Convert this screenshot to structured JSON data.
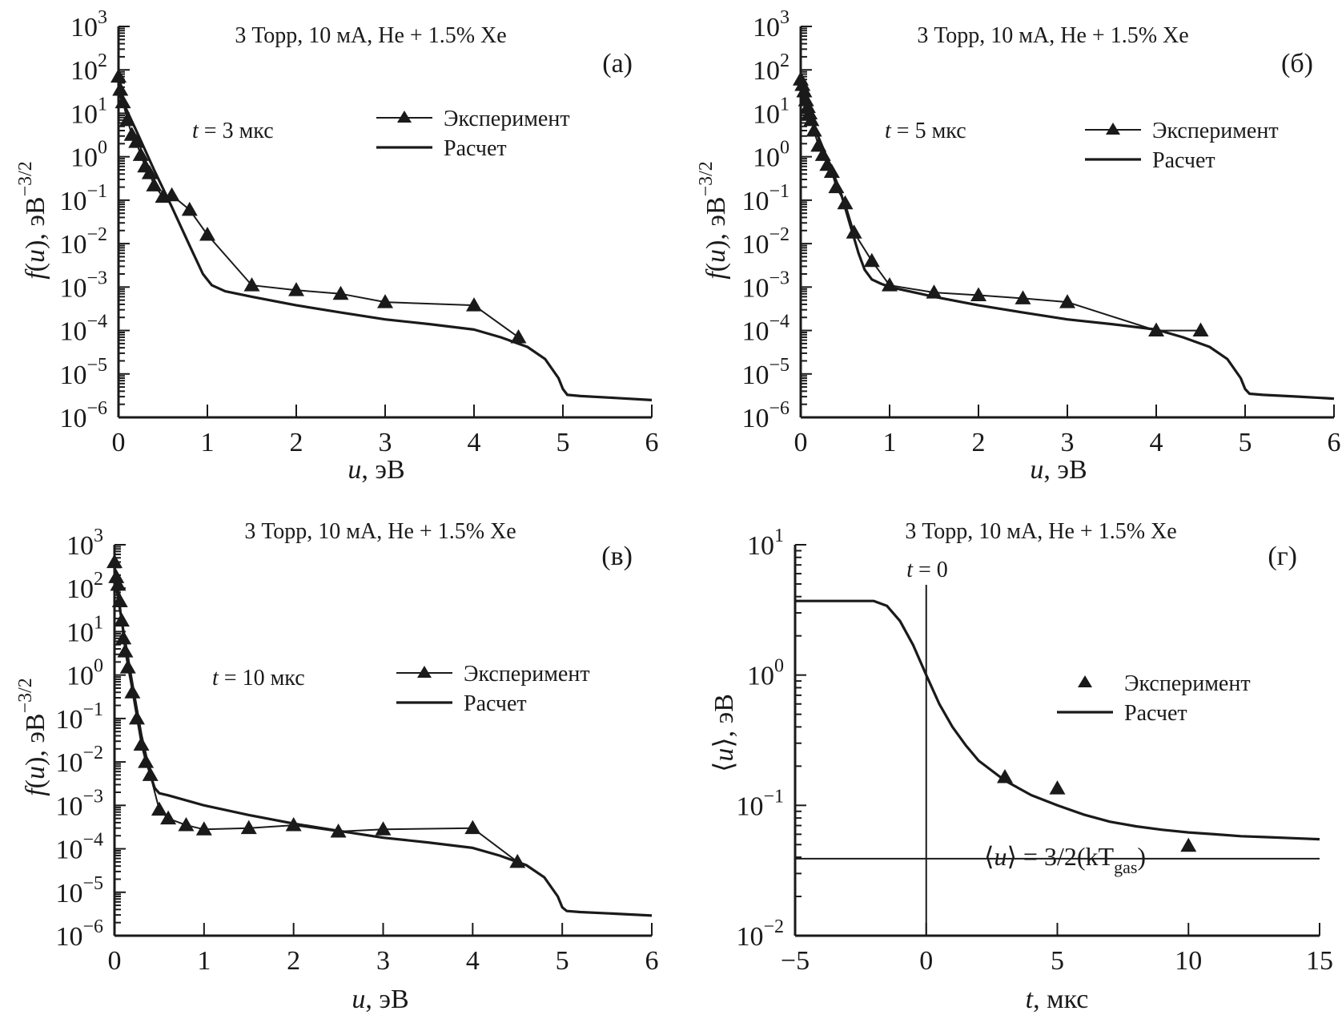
{
  "figure": {
    "panels_count": 4
  },
  "chart_data": [
    {
      "id": "a",
      "type": "line",
      "panel_label": "(а)",
      "title": "3 Торр, 10 мА, He + 1.5% Xe",
      "annotation": "t = 3 мкс",
      "annotation_var": "t",
      "annotation_rest": " = 3 мкс",
      "xlabel": "u, эВ",
      "xlabel_var": "u",
      "xlabel_rest": ", эВ",
      "ylabel": "f(u), эВ^-3/2",
      "ylabel_main": "f(u), эВ",
      "ylabel_sup": "−3/2",
      "yscale": "log",
      "xlim": [
        0,
        6
      ],
      "ylim": [
        1e-06,
        1000.0
      ],
      "xticks": [
        "0",
        "1",
        "2",
        "3",
        "4",
        "5",
        "6"
      ],
      "yticks": [
        {
          "base": "10",
          "exp": "3"
        },
        {
          "base": "10",
          "exp": "2"
        },
        {
          "base": "10",
          "exp": "1"
        },
        {
          "base": "10",
          "exp": "0"
        },
        {
          "base": "10",
          "exp": "−1"
        },
        {
          "base": "10",
          "exp": "−2"
        },
        {
          "base": "10",
          "exp": "−3"
        },
        {
          "base": "10",
          "exp": "−4"
        },
        {
          "base": "10",
          "exp": "−5"
        },
        {
          "base": "10",
          "exp": "−6"
        }
      ],
      "legend": {
        "position": "top-right",
        "entries": [
          "Эксперимент",
          "Расчет"
        ],
        "experiment_has_line": true
      },
      "series": [
        {
          "name": "Эксперимент",
          "style": "line+triangle",
          "x": [
            0.0,
            0.02,
            0.05,
            0.1,
            0.15,
            0.2,
            0.25,
            0.3,
            0.35,
            0.4,
            0.5,
            0.6,
            0.8,
            1.0,
            1.5,
            2.0,
            2.5,
            3.0,
            4.0,
            4.5
          ],
          "y": [
            70,
            35,
            18,
            7,
            3.2,
            2.2,
            1.1,
            0.6,
            0.42,
            0.22,
            0.12,
            0.13,
            0.06,
            0.016,
            0.0011,
            0.00085,
            0.0007,
            0.00045,
            0.00038,
            7e-05
          ]
        },
        {
          "name": "Расчет",
          "style": "line",
          "x": [
            0.0,
            0.2,
            0.4,
            0.6,
            0.8,
            0.95,
            1.05,
            1.2,
            1.5,
            2.0,
            2.5,
            3.0,
            3.5,
            4.0,
            4.3,
            4.6,
            4.8,
            4.95,
            5.0,
            5.05,
            5.2,
            5.6,
            6.0
          ],
          "y": [
            30,
            4,
            0.5,
            0.07,
            0.009,
            0.002,
            0.0011,
            0.0008,
            0.0006,
            0.00038,
            0.00026,
            0.00018,
            0.00014,
            0.000105,
            7e-05,
            4.2e-05,
            2.2e-05,
            8e-06,
            4.5e-06,
            3.3e-06,
            3.1e-06,
            2.8e-06,
            2.5e-06
          ]
        }
      ]
    },
    {
      "id": "b",
      "type": "line",
      "panel_label": "(б)",
      "title": "3 Торр, 10 мА, He + 1.5% Xe",
      "annotation": "t = 5 мкс",
      "annotation_var": "t",
      "annotation_rest": " = 5 мкс",
      "xlabel": "u, эВ",
      "xlabel_var": "u",
      "xlabel_rest": ", эВ",
      "ylabel": "f(u), эВ^-3/2",
      "ylabel_main": "f(u), эВ",
      "ylabel_sup": "−3/2",
      "yscale": "log",
      "xlim": [
        0,
        6
      ],
      "ylim": [
        1e-06,
        1000.0
      ],
      "xticks": [
        "0",
        "1",
        "2",
        "3",
        "4",
        "5",
        "6"
      ],
      "yticks": [
        {
          "base": "10",
          "exp": "3"
        },
        {
          "base": "10",
          "exp": "2"
        },
        {
          "base": "10",
          "exp": "1"
        },
        {
          "base": "10",
          "exp": "0"
        },
        {
          "base": "10",
          "exp": "−1"
        },
        {
          "base": "10",
          "exp": "−2"
        },
        {
          "base": "10",
          "exp": "−3"
        },
        {
          "base": "10",
          "exp": "−4"
        },
        {
          "base": "10",
          "exp": "−5"
        },
        {
          "base": "10",
          "exp": "−6"
        }
      ],
      "legend": {
        "position": "top-right",
        "entries": [
          "Эксперимент",
          "Расчет"
        ],
        "experiment_has_line": true
      },
      "series": [
        {
          "name": "Эксперимент",
          "style": "line+triangle",
          "x": [
            0.0,
            0.02,
            0.04,
            0.06,
            0.08,
            0.1,
            0.12,
            0.15,
            0.2,
            0.25,
            0.3,
            0.35,
            0.4,
            0.5,
            0.6,
            0.8,
            1.0,
            1.5,
            2.0,
            2.5,
            3.0,
            4.0,
            4.5
          ],
          "y": [
            60,
            45,
            32,
            20,
            14,
            10,
            7,
            4,
            1.8,
            1.1,
            0.65,
            0.45,
            0.2,
            0.085,
            0.018,
            0.004,
            0.0011,
            0.00075,
            0.00065,
            0.00055,
            0.00045,
            0.0001,
            0.0001
          ]
        },
        {
          "name": "Расчет",
          "style": "line",
          "x": [
            0.0,
            0.15,
            0.3,
            0.45,
            0.55,
            0.65,
            0.72,
            0.8,
            0.9,
            1.0,
            1.5,
            2.0,
            2.5,
            3.0,
            3.5,
            4.0,
            4.3,
            4.6,
            4.8,
            4.95,
            5.0,
            5.05,
            5.2,
            5.6,
            6.0
          ],
          "y": [
            30,
            5,
            0.9,
            0.15,
            0.03,
            0.006,
            0.0025,
            0.0015,
            0.0012,
            0.001,
            0.0006,
            0.00038,
            0.00026,
            0.00018,
            0.00014,
            0.000105,
            7e-05,
            4.2e-05,
            2.2e-05,
            8e-06,
            4.5e-06,
            3.5e-06,
            3.3e-06,
            3e-06,
            2.7e-06
          ]
        }
      ]
    },
    {
      "id": "c",
      "type": "line",
      "panel_label": "(в)",
      "title": "3 Торр, 10 мА, He + 1.5% Xe",
      "annotation": "t = 10 мкс",
      "annotation_var": "t",
      "annotation_rest": " = 10 мкс",
      "xlabel": "u, эВ",
      "xlabel_var": "u",
      "xlabel_rest": ", эВ",
      "ylabel": "f(u), эВ^-3/2",
      "ylabel_main": "f(u), эВ",
      "ylabel_sup": "−3/2",
      "yscale": "log",
      "xlim": [
        0,
        6
      ],
      "ylim": [
        1e-06,
        1000.0
      ],
      "xticks": [
        "0",
        "1",
        "2",
        "3",
        "4",
        "5",
        "6"
      ],
      "yticks": [
        {
          "base": "10",
          "exp": "3"
        },
        {
          "base": "10",
          "exp": "2"
        },
        {
          "base": "10",
          "exp": "1"
        },
        {
          "base": "10",
          "exp": "0"
        },
        {
          "base": "10",
          "exp": "−1"
        },
        {
          "base": "10",
          "exp": "−2"
        },
        {
          "base": "10",
          "exp": "−3"
        },
        {
          "base": "10",
          "exp": "−4"
        },
        {
          "base": "10",
          "exp": "−5"
        },
        {
          "base": "10",
          "exp": "−6"
        }
      ],
      "legend": {
        "position": "middle-right",
        "entries": [
          "Эксперимент",
          "Расчет"
        ],
        "experiment_has_line": true
      },
      "series": [
        {
          "name": "Эксперимент",
          "style": "line+triangle",
          "x": [
            0.0,
            0.02,
            0.04,
            0.06,
            0.08,
            0.1,
            0.12,
            0.15,
            0.2,
            0.25,
            0.3,
            0.35,
            0.4,
            0.5,
            0.6,
            0.8,
            1.0,
            1.5,
            2.0,
            2.5,
            3.0,
            4.0,
            4.5
          ],
          "y": [
            400,
            180,
            120,
            50,
            18,
            7,
            3.5,
            1.5,
            0.4,
            0.1,
            0.025,
            0.01,
            0.005,
            0.0008,
            0.0005,
            0.00035,
            0.00028,
            0.0003,
            0.00035,
            0.00025,
            0.00028,
            0.0003,
            5e-05
          ]
        },
        {
          "name": "Расчет",
          "style": "line",
          "x": [
            0.0,
            0.1,
            0.2,
            0.3,
            0.4,
            0.45,
            0.5,
            0.6,
            1.0,
            1.5,
            2.0,
            2.5,
            3.0,
            3.5,
            4.0,
            4.3,
            4.6,
            4.8,
            4.95,
            5.0,
            5.05,
            5.2,
            5.6,
            6.0
          ],
          "y": [
            200,
            10,
            0.6,
            0.04,
            0.005,
            0.0025,
            0.0019,
            0.0017,
            0.001,
            0.0006,
            0.00038,
            0.00026,
            0.00018,
            0.00014,
            0.000105,
            7e-05,
            4.2e-05,
            2.2e-05,
            8e-06,
            4.5e-06,
            3.7e-06,
            3.5e-06,
            3.2e-06,
            2.9e-06
          ]
        }
      ]
    },
    {
      "id": "d",
      "type": "line",
      "panel_label": "(г)",
      "title": "3 Торр, 10 мА, He + 1.5% Xe",
      "annotation": "t = 0",
      "annotation_var": "t",
      "annotation_rest": " = 0",
      "formula": "⟨u⟩ = 3/2(kT_gas)",
      "formula_lhs": "⟨u⟩ = 3/2(kT",
      "formula_sub": "gas",
      "formula_end": ")",
      "xlabel": "t, мкс",
      "xlabel_var": "t",
      "xlabel_rest": ", мкс",
      "ylabel": "⟨u⟩, эВ",
      "ylabel_main": "⟨u⟩, эВ",
      "ylabel_sup": "",
      "yscale": "log",
      "xlim": [
        -5,
        15
      ],
      "ylim": [
        0.01,
        10.0
      ],
      "xticks": [
        "−5",
        "0",
        "5",
        "10",
        "15"
      ],
      "yticks": [
        {
          "base": "10",
          "exp": "1"
        },
        {
          "base": "10",
          "exp": "0"
        },
        {
          "base": "10",
          "exp": "−1"
        },
        {
          "base": "10",
          "exp": "−2"
        }
      ],
      "legend": {
        "position": "middle-right",
        "entries": [
          "Эксперимент",
          "Расчет"
        ],
        "experiment_has_line": false
      },
      "vline_x": 0,
      "hline_y": 0.039,
      "series": [
        {
          "name": "Эксперимент",
          "style": "triangle",
          "x": [
            3,
            5,
            10
          ],
          "y": [
            0.165,
            0.135,
            0.049
          ]
        },
        {
          "name": "Расчет",
          "style": "line",
          "x": [
            -5,
            -4,
            -3,
            -2,
            -1.5,
            -1,
            -0.5,
            0,
            0.5,
            1,
            1.5,
            2,
            3,
            4,
            5,
            6,
            7,
            8,
            9,
            10,
            11,
            12,
            13,
            14,
            15
          ],
          "y": [
            3.7,
            3.7,
            3.7,
            3.7,
            3.4,
            2.6,
            1.7,
            1.0,
            0.6,
            0.4,
            0.29,
            0.22,
            0.155,
            0.12,
            0.1,
            0.085,
            0.075,
            0.069,
            0.065,
            0.062,
            0.06,
            0.058,
            0.057,
            0.056,
            0.055
          ]
        }
      ]
    }
  ]
}
